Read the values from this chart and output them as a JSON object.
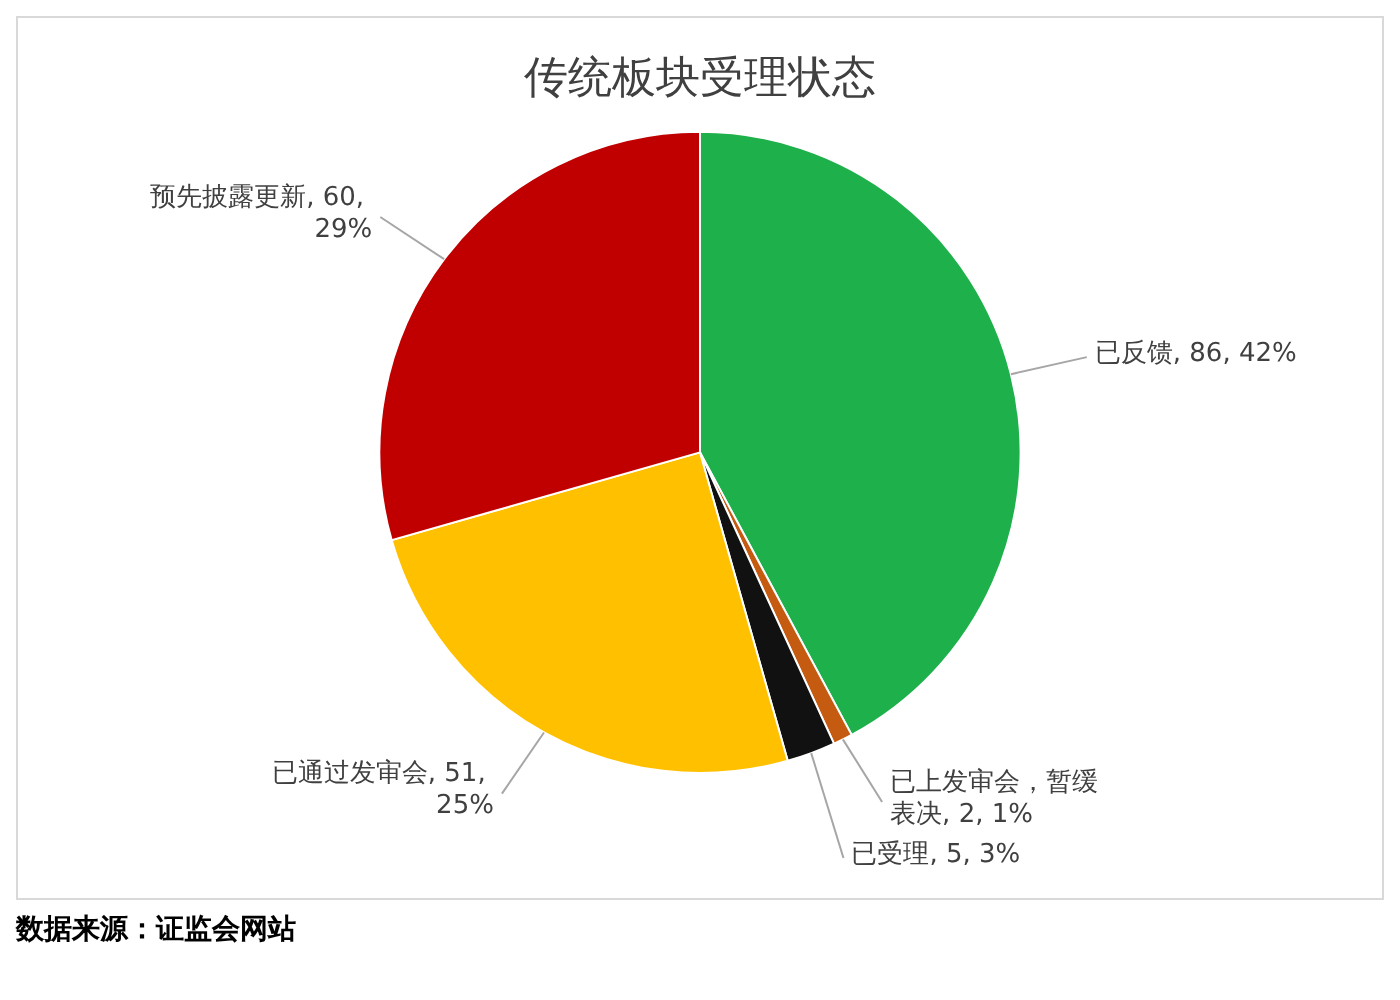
{
  "chart_data": {
    "type": "pie",
    "title": "传统板块受理状态",
    "categories": [
      "已反馈",
      "已上发审会，暂缓表决",
      "已受理",
      "已通过发审会",
      "预先披露更新"
    ],
    "values": [
      86,
      2,
      5,
      51,
      60
    ],
    "value_labels": [
      "86, 42%",
      "2, 1%",
      "5, 3%",
      "51, 25%",
      "60, 29%"
    ],
    "colors": [
      "#1db04b",
      "#c55a11",
      "#111111",
      "#ffc000",
      "#c00000"
    ],
    "legend": false,
    "annotations": [
      "数据来源：证监会网站"
    ]
  }
}
